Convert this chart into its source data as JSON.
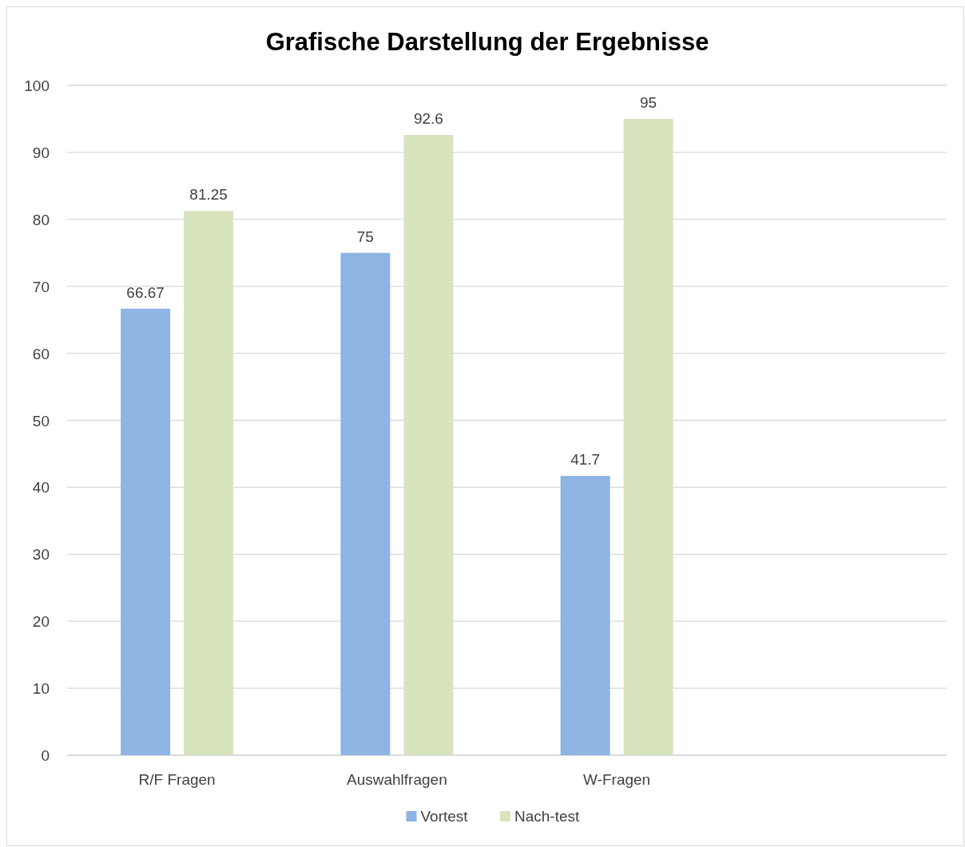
{
  "chart_data": {
    "type": "bar",
    "title": "Grafische Darstellung der Ergebnisse",
    "categories": [
      "R/F Fragen",
      "Auswahlfragen",
      "W-Fragen",
      null
    ],
    "series": [
      {
        "name": "Vortest",
        "color": "#8eb4e3",
        "values": [
          66.67,
          75,
          41.7,
          null
        ]
      },
      {
        "name": "Nach-test",
        "color": "#d7e4bd",
        "values": [
          81.25,
          92.6,
          95,
          null
        ]
      }
    ],
    "ylim": [
      0,
      100
    ],
    "yticks": [
      0,
      10,
      20,
      30,
      40,
      50,
      60,
      70,
      80,
      90,
      100
    ],
    "grid": "y",
    "legend": "bottom",
    "data_labels": true
  }
}
